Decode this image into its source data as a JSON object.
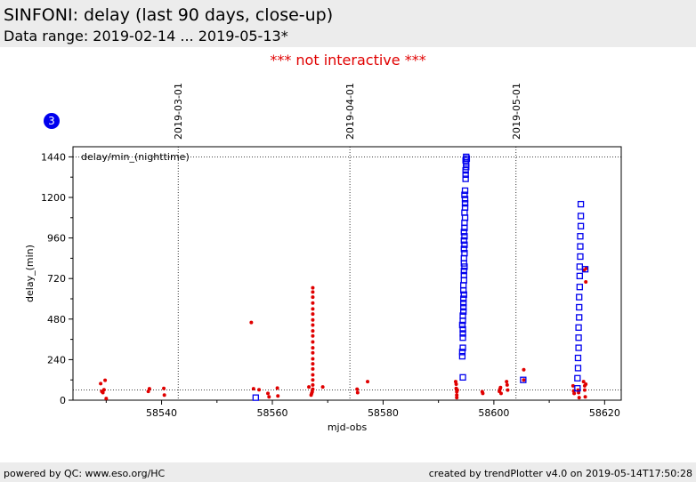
{
  "header": {
    "title": "SINFONI: delay (last 90 days, close-up)",
    "subtitle": "Data range: 2019-02-14 ... 2019-05-13*"
  },
  "notice": "*** not interactive ***",
  "footer": {
    "left": "powered by QC: www.eso.org/HC",
    "right": "created by trendPlotter v4.0 on 2019-05-14T17:50:28"
  },
  "colors": {
    "marker_red": "#e00000",
    "marker_blue": "#0000ee",
    "badge": "#0000ee",
    "header_bg": "#ececec"
  },
  "chart_data": {
    "type": "scatter",
    "badge": "3",
    "panel_label": "delay/min_(nighttime)",
    "xlabel": "mjd-obs",
    "ylabel": "delay_(min)",
    "xlim": [
      58524,
      58623
    ],
    "ylim": [
      0,
      1500
    ],
    "xticks": [
      58540,
      58560,
      58580,
      58600,
      58620
    ],
    "yticks": [
      0,
      240,
      480,
      720,
      960,
      1200,
      1440
    ],
    "reference_lines_y": [
      1440,
      60
    ],
    "date_markers": [
      {
        "label": "2019-03-01",
        "x": 58543.0
      },
      {
        "label": "2019-04-01",
        "x": 58574.0
      },
      {
        "label": "2019-05-01",
        "x": 58604.0
      }
    ],
    "series": [
      {
        "marker": "dot",
        "points": [
          [
            58529.0,
            98
          ],
          [
            58529.2,
            52
          ],
          [
            58529.4,
            45
          ],
          [
            58529.6,
            62
          ],
          [
            58529.8,
            118
          ],
          [
            58530.0,
            10
          ],
          [
            58537.6,
            52
          ],
          [
            58537.8,
            68
          ],
          [
            58540.4,
            70
          ],
          [
            58540.5,
            30
          ],
          [
            58556.2,
            460
          ],
          [
            58556.6,
            68
          ],
          [
            58557.6,
            62
          ],
          [
            58559.2,
            40
          ],
          [
            58559.4,
            20
          ],
          [
            58560.9,
            72
          ],
          [
            58561.0,
            25
          ],
          [
            58566.6,
            78
          ],
          [
            58567.0,
            30
          ],
          [
            58567.1,
            40
          ],
          [
            58567.2,
            50
          ],
          [
            58567.3,
            65
          ],
          [
            58567.3,
            90
          ],
          [
            58567.3,
            120
          ],
          [
            58567.3,
            150
          ],
          [
            58567.3,
            185
          ],
          [
            58567.3,
            215
          ],
          [
            58567.3,
            245
          ],
          [
            58567.3,
            280
          ],
          [
            58567.3,
            310
          ],
          [
            58567.3,
            345
          ],
          [
            58567.3,
            380
          ],
          [
            58567.3,
            410
          ],
          [
            58567.3,
            445
          ],
          [
            58567.3,
            475
          ],
          [
            58567.3,
            510
          ],
          [
            58567.3,
            540
          ],
          [
            58567.3,
            575
          ],
          [
            58567.3,
            610
          ],
          [
            58567.3,
            640
          ],
          [
            58567.3,
            665
          ],
          [
            58569.1,
            78
          ],
          [
            58575.3,
            65
          ],
          [
            58575.4,
            45
          ],
          [
            58577.2,
            110
          ],
          [
            58593.1,
            110
          ],
          [
            58593.2,
            95
          ],
          [
            58593.2,
            70
          ],
          [
            58593.3,
            50
          ],
          [
            58593.3,
            30
          ],
          [
            58593.3,
            15
          ],
          [
            58593.4,
            60
          ],
          [
            58597.9,
            50
          ],
          [
            58598.0,
            40
          ],
          [
            58601.0,
            52
          ],
          [
            58601.1,
            65
          ],
          [
            58601.2,
            75
          ],
          [
            58601.3,
            40
          ],
          [
            58602.3,
            110
          ],
          [
            58602.4,
            90
          ],
          [
            58602.5,
            60
          ],
          [
            58605.4,
            180
          ],
          [
            58605.4,
            120
          ],
          [
            58614.3,
            85
          ],
          [
            58614.4,
            55
          ],
          [
            58614.5,
            40
          ],
          [
            58615.2,
            60
          ],
          [
            58615.3,
            45
          ],
          [
            58615.4,
            15
          ],
          [
            58616.2,
            110
          ],
          [
            58616.4,
            85
          ],
          [
            58616.4,
            60
          ],
          [
            58616.5,
            20
          ],
          [
            58616.6,
            95
          ],
          [
            58616.6,
            700
          ],
          [
            58616.7,
            780
          ],
          [
            58616.3,
            770
          ]
        ]
      },
      {
        "marker": "square",
        "points": [
          [
            58557.0,
            15
          ],
          [
            58594.4,
            135
          ],
          [
            58594.3,
            260
          ],
          [
            58594.3,
            285
          ],
          [
            58594.4,
            310
          ],
          [
            58594.4,
            370
          ],
          [
            58594.4,
            395
          ],
          [
            58594.4,
            420
          ],
          [
            58594.3,
            445
          ],
          [
            58594.4,
            470
          ],
          [
            58594.4,
            500
          ],
          [
            58594.5,
            525
          ],
          [
            58594.5,
            550
          ],
          [
            58594.5,
            575
          ],
          [
            58594.5,
            600
          ],
          [
            58594.6,
            625
          ],
          [
            58594.5,
            650
          ],
          [
            58594.5,
            680
          ],
          [
            58594.6,
            710
          ],
          [
            58594.6,
            740
          ],
          [
            58594.6,
            765
          ],
          [
            58594.7,
            790
          ],
          [
            58594.6,
            810
          ],
          [
            58594.6,
            840
          ],
          [
            58594.7,
            870
          ],
          [
            58594.6,
            895
          ],
          [
            58594.7,
            920
          ],
          [
            58594.6,
            945
          ],
          [
            58594.7,
            970
          ],
          [
            58594.6,
            995
          ],
          [
            58594.7,
            1020
          ],
          [
            58594.7,
            1050
          ],
          [
            58594.8,
            1080
          ],
          [
            58594.7,
            1110
          ],
          [
            58594.8,
            1140
          ],
          [
            58594.8,
            1165
          ],
          [
            58594.8,
            1190
          ],
          [
            58594.7,
            1215
          ],
          [
            58594.8,
            1240
          ],
          [
            58594.9,
            1310
          ],
          [
            58594.9,
            1335
          ],
          [
            58594.9,
            1360
          ],
          [
            58595.0,
            1380
          ],
          [
            58595.0,
            1400
          ],
          [
            58594.9,
            1420
          ],
          [
            58595.1,
            1430
          ],
          [
            58595.0,
            1440
          ],
          [
            58605.3,
            120
          ],
          [
            58615.1,
            70
          ],
          [
            58615.1,
            130
          ],
          [
            58615.2,
            190
          ],
          [
            58615.2,
            250
          ],
          [
            58615.3,
            310
          ],
          [
            58615.3,
            370
          ],
          [
            58615.3,
            430
          ],
          [
            58615.4,
            490
          ],
          [
            58615.4,
            550
          ],
          [
            58615.4,
            610
          ],
          [
            58615.5,
            670
          ],
          [
            58615.5,
            735
          ],
          [
            58615.5,
            790
          ],
          [
            58615.6,
            850
          ],
          [
            58615.6,
            910
          ],
          [
            58615.6,
            970
          ],
          [
            58615.7,
            1030
          ],
          [
            58615.7,
            1090
          ],
          [
            58615.7,
            1160
          ],
          [
            58616.5,
            775
          ]
        ]
      }
    ]
  }
}
